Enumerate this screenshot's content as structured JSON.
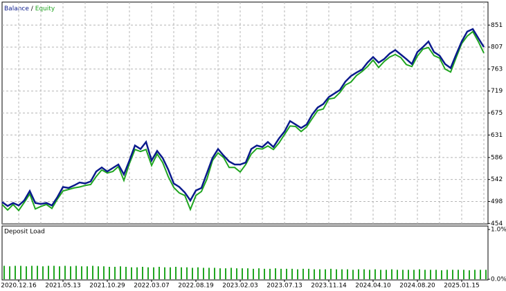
{
  "chart_data": [
    {
      "type": "line",
      "legend_separator": "/",
      "categories": [
        null,
        null,
        null,
        "2020.12.16",
        null,
        null,
        null,
        null,
        null,
        null,
        null,
        "2021.05.13",
        null,
        null,
        null,
        null,
        null,
        null,
        null,
        "2021.10.29",
        null,
        null,
        null,
        null,
        null,
        null,
        null,
        "2022.03.07",
        null,
        null,
        null,
        null,
        null,
        null,
        null,
        "2022.08.19",
        null,
        null,
        null,
        null,
        null,
        null,
        null,
        "2023.02.03",
        null,
        null,
        null,
        null,
        null,
        null,
        null,
        "2023.07.13",
        null,
        null,
        null,
        null,
        null,
        null,
        null,
        "2023.11.14",
        null,
        null,
        null,
        null,
        null,
        null,
        null,
        "2024.04.10",
        null,
        null,
        null,
        null,
        null,
        null,
        null,
        "2024.08.20",
        null,
        null,
        null,
        null,
        null,
        null,
        null,
        "2025.01.15",
        null,
        null,
        null,
        null
      ],
      "series": [
        {
          "name": "Equity",
          "color": "#1fa51f",
          "values": [
            492,
            481,
            492,
            480,
            496,
            513,
            483,
            488,
            492,
            484,
            503,
            519,
            522,
            525,
            527,
            530,
            532,
            548,
            561,
            555,
            558,
            568,
            540,
            574,
            602,
            598,
            602,
            570,
            593,
            576,
            548,
            526,
            515,
            510,
            482,
            510,
            518,
            543,
            580,
            595,
            586,
            566,
            566,
            557,
            572,
            593,
            604,
            603,
            609,
            602,
            615,
            632,
            649,
            648,
            638,
            647,
            664,
            680,
            683,
            703,
            705,
            716,
            731,
            737,
            750,
            758,
            768,
            781,
            766,
            778,
            787,
            792,
            786,
            772,
            768,
            789,
            803,
            806,
            790,
            785,
            763,
            757,
            786,
            814,
            829,
            838,
            818,
            795
          ]
        },
        {
          "name": "Balance",
          "color": "#0a1a8c",
          "values": [
            497,
            489,
            495,
            490,
            500,
            519,
            495,
            493,
            495,
            490,
            507,
            527,
            525,
            530,
            536,
            534,
            538,
            558,
            566,
            558,
            565,
            572,
            552,
            580,
            610,
            603,
            617,
            580,
            599,
            585,
            562,
            534,
            527,
            516,
            500,
            520,
            525,
            555,
            585,
            603,
            590,
            578,
            572,
            572,
            576,
            603,
            610,
            607,
            617,
            607,
            624,
            638,
            659,
            652,
            645,
            652,
            672,
            686,
            693,
            707,
            714,
            721,
            738,
            749,
            756,
            762,
            776,
            787,
            776,
            783,
            794,
            801,
            792,
            783,
            773,
            797,
            807,
            818,
            797,
            790,
            773,
            765,
            792,
            818,
            838,
            843,
            825,
            807
          ]
        }
      ],
      "ylim": [
        453,
        897
      ],
      "yticks": [
        454,
        498,
        542,
        586,
        631,
        675,
        719,
        763,
        807,
        851
      ],
      "grid": true
    },
    {
      "type": "bar",
      "title": "Deposit Load",
      "color": "#1fa51f",
      "values": [
        0.27,
        0.26,
        0.27,
        0.27,
        0.26,
        0.27,
        0.27,
        0.26,
        0.27,
        0.27,
        0.26,
        0.27,
        0.26,
        0.27,
        0.26,
        0.26,
        0.27,
        0.26,
        0.26,
        0.25,
        0.25,
        0.26,
        0.25,
        0.24,
        0.24,
        0.25,
        0.24,
        0.24,
        0.25,
        0.24,
        0.24,
        0.25,
        0.24,
        0.24,
        0.23,
        0.24,
        0.23,
        0.23,
        0.23,
        0.22,
        0.22,
        0.23,
        0.22,
        0.22,
        0.22,
        0.21,
        0.22,
        0.21,
        0.21,
        0.22,
        0.21,
        0.21,
        0.21,
        0.2,
        0.21,
        0.21,
        0.2,
        0.2,
        0.2,
        0.21,
        0.2,
        0.2,
        0.2,
        0.19,
        0.2,
        0.2,
        0.19,
        0.2,
        0.19,
        0.19,
        0.2,
        0.19,
        0.19,
        0.19,
        0.19,
        0.2,
        0.19,
        0.19,
        0.19,
        0.18,
        0.19,
        0.19,
        0.19,
        0.19,
        0.18,
        0.19,
        0.19,
        0.19
      ],
      "ylim": [
        0,
        1
      ],
      "yticks": [
        {
          "value": 0,
          "label": "0.0%"
        },
        {
          "value": 1,
          "label": "1.0%"
        }
      ],
      "grid": false
    }
  ]
}
